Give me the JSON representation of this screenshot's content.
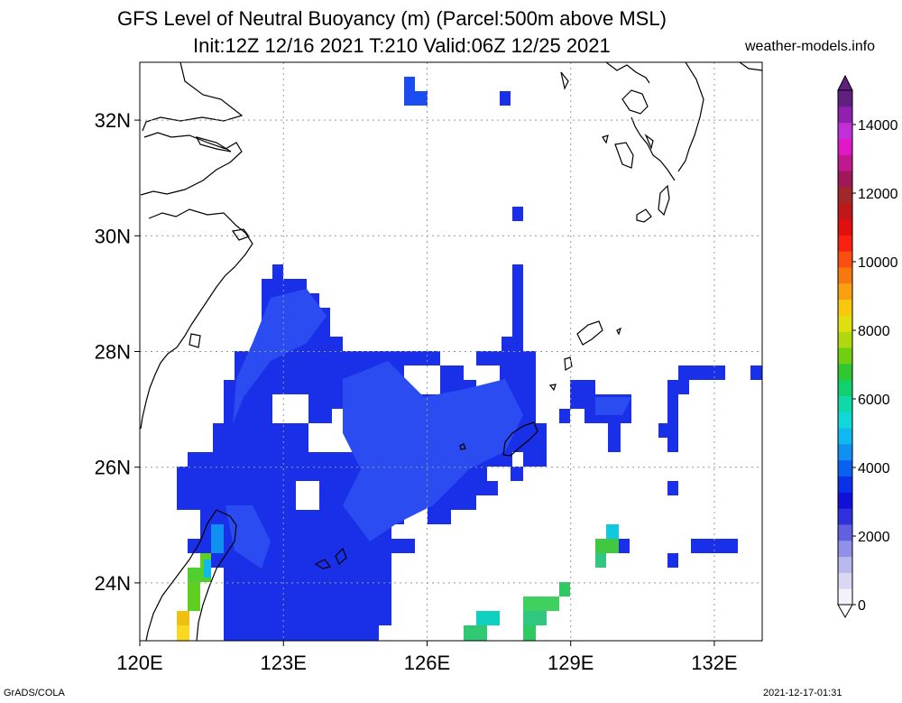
{
  "header": {
    "title_line1": "GFS Level of Neutral Buoyancy (m) (Parcel:500m above MSL)",
    "title_line2": "Init:12Z 12/16 2021 T:210 Valid:06Z 12/25 2021",
    "website": "weather-models.info"
  },
  "footer": {
    "software": "GrADS/COLA",
    "generated": "2021-12-17-01:31"
  },
  "map": {
    "lon_range": [
      120,
      133
    ],
    "lat_range": [
      23,
      33
    ],
    "lon_ticks": [
      {
        "value": 120,
        "label": "120E"
      },
      {
        "value": 123,
        "label": "123E"
      },
      {
        "value": 126,
        "label": "126E"
      },
      {
        "value": 129,
        "label": "129E"
      },
      {
        "value": 132,
        "label": "132E"
      }
    ],
    "lat_ticks": [
      {
        "value": 24,
        "label": "24N"
      },
      {
        "value": 26,
        "label": "26N"
      },
      {
        "value": 28,
        "label": "28N"
      },
      {
        "value": 30,
        "label": "30N"
      },
      {
        "value": 32,
        "label": "32N"
      }
    ],
    "grid": true
  },
  "colorbar": {
    "labels": [
      "0",
      "2000",
      "4000",
      "6000",
      "8000",
      "10000",
      "12000",
      "14000"
    ],
    "colors": [
      "#f2f2fa",
      "#d8d8f4",
      "#b8b8ee",
      "#9090e8",
      "#6060e0",
      "#3030dc",
      "#1010d8",
      "#0a30e8",
      "#0a60f0",
      "#1090f0",
      "#10b8f0",
      "#10d8d8",
      "#10d8a8",
      "#10d070",
      "#30c830",
      "#70d010",
      "#b0d810",
      "#e0e010",
      "#f8c810",
      "#f8a010",
      "#f87810",
      "#f85010",
      "#f82010",
      "#e01010",
      "#c01818",
      "#a02828",
      "#a01858",
      "#c01890",
      "#e018c8",
      "#c030d8",
      "#9020b0",
      "#602080"
    ]
  }
}
